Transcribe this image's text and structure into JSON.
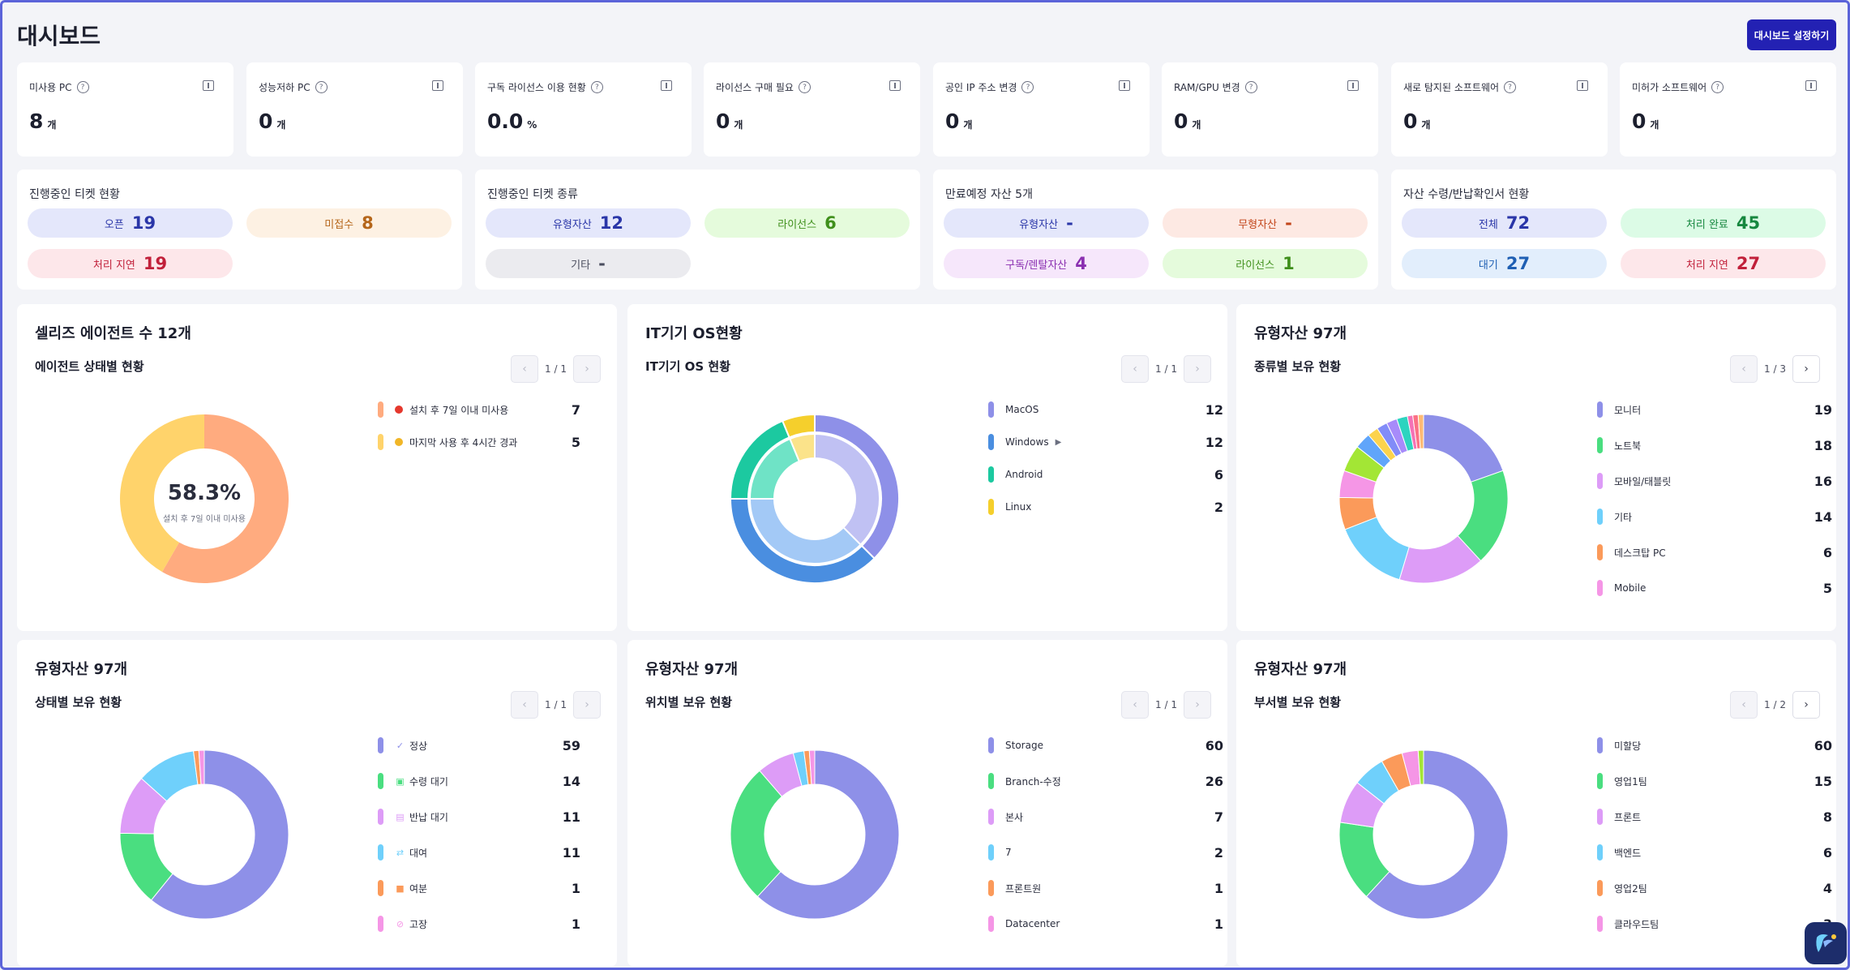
{
  "page": {
    "title": "대시보드",
    "settings_button": "대시보드 설정하기"
  },
  "stats": [
    {
      "label": "미사용 PC",
      "value": "8",
      "unit": "개"
    },
    {
      "label": "성능저하 PC",
      "value": "0",
      "unit": "개"
    },
    {
      "label": "구독 라이선스 이용 현황",
      "value": "0.0",
      "unit": "%"
    },
    {
      "label": "라이선스 구매 필요",
      "value": "0",
      "unit": "개"
    },
    {
      "label": "공인 IP 주소 변경",
      "value": "0",
      "unit": "개"
    },
    {
      "label": "RAM/GPU 변경",
      "value": "0",
      "unit": "개"
    },
    {
      "label": "새로 탐지된 소프트웨어",
      "value": "0",
      "unit": "개"
    },
    {
      "label": "미허가 소프트웨어",
      "value": "0",
      "unit": "개"
    }
  ],
  "tickets": {
    "title": "진행중인 티켓 현황",
    "items": [
      {
        "label": "오픈",
        "value": "19",
        "bg": "#e4e7fb",
        "fg": "#2a36a8"
      },
      {
        "label": "미접수",
        "value": "8",
        "bg": "#fdf1e3",
        "fg": "#b5661a"
      },
      {
        "label": "처리 지연",
        "value": "19",
        "bg": "#fde7ea",
        "fg": "#c1203a"
      }
    ]
  },
  "ticket_types": {
    "title": "진행중인 티켓 종류",
    "items": [
      {
        "label": "유형자산",
        "value": "12",
        "bg": "#e4e7fb",
        "fg": "#2a36a8"
      },
      {
        "label": "라이선스",
        "value": "6",
        "bg": "#e5fbdc",
        "fg": "#3f8f1b"
      },
      {
        "label": "기타",
        "value": "-",
        "bg": "#ebebef",
        "fg": "#4a4d5e"
      }
    ]
  },
  "expiring": {
    "title": "만료예정 자산 5개",
    "items": [
      {
        "label": "유형자산",
        "value": "-",
        "bg": "#e4e7fb",
        "fg": "#2a36a8"
      },
      {
        "label": "무형자산",
        "value": "-",
        "bg": "#fde9e3",
        "fg": "#c2451a"
      },
      {
        "label": "구독/렌탈자산",
        "value": "4",
        "bg": "#f6e7fb",
        "fg": "#8a2fb0"
      },
      {
        "label": "라이선스",
        "value": "1",
        "bg": "#e5fbdc",
        "fg": "#3f8f1b"
      }
    ]
  },
  "receipts": {
    "title": "자산 수령/반납확인서 현황",
    "items": [
      {
        "label": "전체",
        "value": "72",
        "bg": "#e4e7fb",
        "fg": "#2a36a8"
      },
      {
        "label": "처리 완료",
        "value": "45",
        "bg": "#dcfbe6",
        "fg": "#16873f"
      },
      {
        "label": "대기",
        "value": "27",
        "bg": "#e2eefc",
        "fg": "#1f5fb3"
      },
      {
        "label": "처리 지연",
        "value": "27",
        "bg": "#fde7ea",
        "fg": "#c1203a"
      }
    ]
  },
  "panels": [
    {
      "title": "셀리즈 에이전트 수 12개",
      "subtitle": "에이전트 상태별 현황",
      "page": "1 / 1",
      "center_value": "58.3%",
      "center_label": "설치 후 7일 이내 미사용",
      "legend": [
        {
          "label": "설치 후 7일 이내 미사용",
          "value": "7",
          "color": "#ffab7f",
          "dot": "#e5382d"
        },
        {
          "label": "마지막 사용 후 4시간 경과",
          "value": "5",
          "color": "#ffd36b",
          "dot": "#f1b627"
        }
      ]
    },
    {
      "title": "IT기기 OS현황",
      "subtitle": "IT기기 OS 현황",
      "page": "1 / 1",
      "legend": [
        {
          "label": "MacOS",
          "value": "12",
          "color": "#8e90e8"
        },
        {
          "label": "Windows",
          "value": "12",
          "color": "#4a8ee0",
          "arrow": "▶"
        },
        {
          "label": "Android",
          "value": "6",
          "color": "#1cc9a0"
        },
        {
          "label": "Linux",
          "value": "2",
          "color": "#f5cf2c"
        }
      ]
    },
    {
      "title": "유형자산 97개",
      "subtitle": "종류별 보유 현황",
      "page": "1 / 3",
      "legend": [
        {
          "label": "모니터",
          "value": "19",
          "color": "#8e90e8"
        },
        {
          "label": "노트북",
          "value": "18",
          "color": "#4ade80"
        },
        {
          "label": "모바일/태블릿",
          "value": "16",
          "color": "#dd9cf7"
        },
        {
          "label": "기타",
          "value": "14",
          "color": "#6fd0fb"
        },
        {
          "label": "데스크탑 PC",
          "value": "6",
          "color": "#fb9a5a"
        },
        {
          "label": "Mobile",
          "value": "5",
          "color": "#f596e6"
        }
      ]
    },
    {
      "title": "유형자산 97개",
      "subtitle": "상태별 보유 현황",
      "page": "1 / 1",
      "legend": [
        {
          "label": "정상",
          "value": "59",
          "color": "#8e90e8",
          "icon": "✓"
        },
        {
          "label": "수령 대기",
          "value": "14",
          "color": "#4ade80",
          "icon": "▣"
        },
        {
          "label": "반납 대기",
          "value": "11",
          "color": "#dd9cf7",
          "icon": "▤"
        },
        {
          "label": "대여",
          "value": "11",
          "color": "#6fd0fb",
          "icon": "⇄"
        },
        {
          "label": "여분",
          "value": "1",
          "color": "#fb9a5a",
          "icon": "■"
        },
        {
          "label": "고장",
          "value": "1",
          "color": "#f596e6",
          "icon": "⊘"
        }
      ]
    },
    {
      "title": "유형자산 97개",
      "subtitle": "위치별 보유 현황",
      "page": "1 / 1",
      "legend": [
        {
          "label": "Storage",
          "value": "60",
          "color": "#8e90e8"
        },
        {
          "label": "Branch-수정",
          "value": "26",
          "color": "#4ade80"
        },
        {
          "label": "본사",
          "value": "7",
          "color": "#dd9cf7"
        },
        {
          "label": "7",
          "value": "2",
          "color": "#6fd0fb"
        },
        {
          "label": "프론트원",
          "value": "1",
          "color": "#fb9a5a"
        },
        {
          "label": "Datacenter",
          "value": "1",
          "color": "#f596e6"
        }
      ]
    },
    {
      "title": "유형자산 97개",
      "subtitle": "부서별 보유 현황",
      "page": "1 / 2",
      "legend": [
        {
          "label": "미할당",
          "value": "60",
          "color": "#8e90e8"
        },
        {
          "label": "영업1팀",
          "value": "15",
          "color": "#4ade80"
        },
        {
          "label": "프론트",
          "value": "8",
          "color": "#dd9cf7"
        },
        {
          "label": "백엔드",
          "value": "6",
          "color": "#6fd0fb"
        },
        {
          "label": "영업2팀",
          "value": "4",
          "color": "#fb9a5a"
        },
        {
          "label": "클라우드팀",
          "value": "3",
          "color": "#f596e6"
        }
      ]
    }
  ],
  "donuts": {
    "agent": [
      {
        "value": 7,
        "color": "#ffab7f"
      },
      {
        "value": 5,
        "color": "#ffd36b"
      }
    ],
    "os_outer": [
      {
        "value": 12,
        "color": "#8e90e8"
      },
      {
        "value": 12,
        "color": "#4a8ee0"
      },
      {
        "value": 6,
        "color": "#1cc9a0"
      },
      {
        "value": 2,
        "color": "#f5cf2c"
      }
    ],
    "os_inner": [
      {
        "value": 12,
        "color": "#c0c1f3"
      },
      {
        "value": 12,
        "color": "#a3c9f6"
      },
      {
        "value": 6,
        "color": "#6fe3c6"
      },
      {
        "value": 2,
        "color": "#fbe38a"
      }
    ],
    "type": [
      {
        "value": 19,
        "color": "#8e90e8"
      },
      {
        "value": 18,
        "color": "#4ade80"
      },
      {
        "value": 16,
        "color": "#dd9cf7"
      },
      {
        "value": 14,
        "color": "#6fd0fb"
      },
      {
        "value": 6,
        "color": "#fb9a5a"
      },
      {
        "value": 5,
        "color": "#f596e6"
      },
      {
        "value": 5,
        "color": "#a3e635"
      },
      {
        "value": 3,
        "color": "#60a5fa"
      },
      {
        "value": 2,
        "color": "#fcd34d"
      },
      {
        "value": 2,
        "color": "#818cf8"
      },
      {
        "value": 2,
        "color": "#a78bfa"
      },
      {
        "value": 2,
        "color": "#2dd4bf"
      },
      {
        "value": 1,
        "color": "#f472b6"
      },
      {
        "value": 1,
        "color": "#fb7185"
      },
      {
        "value": 1,
        "color": "#fdba74"
      }
    ],
    "status": [
      {
        "value": 59,
        "color": "#8e90e8"
      },
      {
        "value": 14,
        "color": "#4ade80"
      },
      {
        "value": 11,
        "color": "#dd9cf7"
      },
      {
        "value": 11,
        "color": "#6fd0fb"
      },
      {
        "value": 1,
        "color": "#fb9a5a"
      },
      {
        "value": 1,
        "color": "#f596e6"
      }
    ],
    "location": [
      {
        "value": 60,
        "color": "#8e90e8"
      },
      {
        "value": 26,
        "color": "#4ade80"
      },
      {
        "value": 7,
        "color": "#dd9cf7"
      },
      {
        "value": 2,
        "color": "#6fd0fb"
      },
      {
        "value": 1,
        "color": "#fb9a5a"
      },
      {
        "value": 1,
        "color": "#f596e6"
      }
    ],
    "department": [
      {
        "value": 60,
        "color": "#8e90e8"
      },
      {
        "value": 15,
        "color": "#4ade80"
      },
      {
        "value": 8,
        "color": "#dd9cf7"
      },
      {
        "value": 6,
        "color": "#6fd0fb"
      },
      {
        "value": 4,
        "color": "#fb9a5a"
      },
      {
        "value": 3,
        "color": "#f596e6"
      },
      {
        "value": 1,
        "color": "#a3e635"
      }
    ]
  }
}
